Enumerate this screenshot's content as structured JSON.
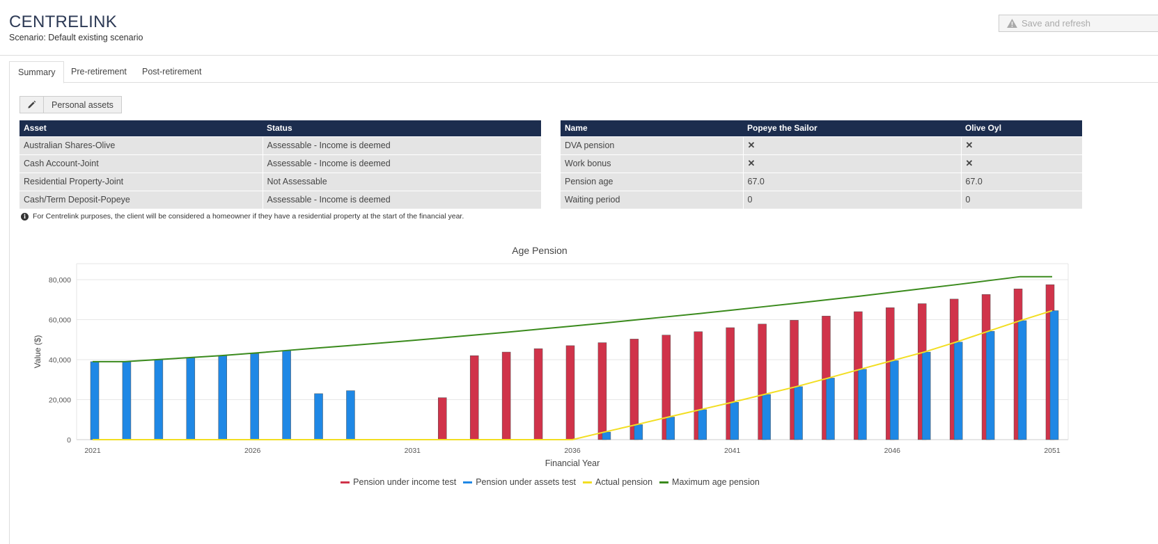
{
  "header": {
    "title": "CENTRELINK",
    "scenario": "Scenario: Default existing scenario",
    "save_label": "Save and refresh"
  },
  "tabs": [
    {
      "label": "Summary",
      "active": true
    },
    {
      "label": "Pre-retirement",
      "active": false
    },
    {
      "label": "Post-retirement",
      "active": false
    }
  ],
  "toolbar": {
    "edit_icon": "pencil-icon",
    "assets_label": "Personal assets"
  },
  "asset_table": {
    "headers": [
      "Asset",
      "Status"
    ],
    "rows": [
      [
        "Australian Shares-Olive",
        "Assessable - Income is deemed"
      ],
      [
        "Cash Account-Joint",
        "Assessable - Income is deemed"
      ],
      [
        "Residential Property-Joint",
        "Not Assessable"
      ],
      [
        "Cash/Term Deposit-Popeye",
        "Assessable - Income is deemed"
      ]
    ]
  },
  "person_table": {
    "headers": [
      "Name",
      "Popeye the Sailor",
      "Olive Oyl"
    ],
    "rows": [
      [
        "DVA pension",
        "✕",
        "✕"
      ],
      [
        "Work bonus",
        "✕",
        "✕"
      ],
      [
        "Pension age",
        "67.0",
        "67.0"
      ],
      [
        "Waiting period",
        "0",
        "0"
      ]
    ]
  },
  "note": "For Centrelink purposes, the client will be considered a homeowner if they have a residential property at the start of the financial year.",
  "colors": {
    "header_navy": "#1c2d4e",
    "income_test": "#d0334a",
    "assets_test": "#1f88e5",
    "actual": "#f2de22",
    "maximum": "#3a8a1c"
  },
  "chart_data": {
    "type": "bar",
    "title": "Age Pension",
    "xlabel": "Financial Year",
    "ylabel": "Value ($)",
    "ylim": [
      0,
      88000
    ],
    "yticks": [
      0,
      20000,
      40000,
      60000,
      80000
    ],
    "ytick_labels": [
      "0",
      "20,000",
      "40,000",
      "60,000",
      "80,000"
    ],
    "x": [
      2021,
      2022,
      2023,
      2024,
      2025,
      2026,
      2027,
      2028,
      2029,
      2030,
      2031,
      2032,
      2033,
      2034,
      2035,
      2036,
      2037,
      2038,
      2039,
      2040,
      2041,
      2042,
      2043,
      2044,
      2045,
      2046,
      2047,
      2048,
      2049,
      2050,
      2051
    ],
    "xtick_labels": [
      "2021",
      "2026",
      "2031",
      "2036",
      "2041",
      "2046",
      "2051"
    ],
    "legend_position": "bottom",
    "grid": true,
    "series": [
      {
        "name": "Pension under income test",
        "kind": "bar",
        "values": [
          0,
          0,
          0,
          0,
          0,
          0,
          0,
          0,
          0,
          0,
          0,
          21000,
          42000,
          43800,
          45500,
          47000,
          48500,
          50300,
          52300,
          54000,
          56000,
          57800,
          59700,
          61800,
          64000,
          66000,
          68000,
          70300,
          72600,
          75400,
          77500
        ]
      },
      {
        "name": "Pension under assets test",
        "kind": "bar",
        "values": [
          39000,
          39000,
          40000,
          41000,
          42000,
          43000,
          44500,
          23000,
          24500,
          0,
          0,
          0,
          0,
          0,
          0,
          0,
          3800,
          7500,
          11300,
          15000,
          18700,
          22600,
          26500,
          30800,
          35200,
          39500,
          43800,
          48800,
          54200,
          59500,
          64500
        ]
      },
      {
        "name": "Actual pension",
        "kind": "line",
        "values": [
          0,
          0,
          0,
          0,
          0,
          0,
          0,
          0,
          0,
          0,
          0,
          0,
          0,
          0,
          0,
          0,
          3800,
          7500,
          11300,
          15000,
          18700,
          22600,
          26500,
          30800,
          35200,
          39500,
          43800,
          48800,
          54200,
          59500,
          64500
        ]
      },
      {
        "name": "Maximum age pension",
        "kind": "line",
        "values": [
          39000,
          39000,
          40000,
          41000,
          42000,
          43200,
          44500,
          45800,
          47000,
          48300,
          49600,
          51000,
          52400,
          53800,
          55300,
          56800,
          58300,
          59900,
          61500,
          63100,
          64800,
          66500,
          68200,
          70000,
          71800,
          73700,
          75600,
          77500,
          79500,
          81500,
          81500
        ]
      }
    ]
  }
}
